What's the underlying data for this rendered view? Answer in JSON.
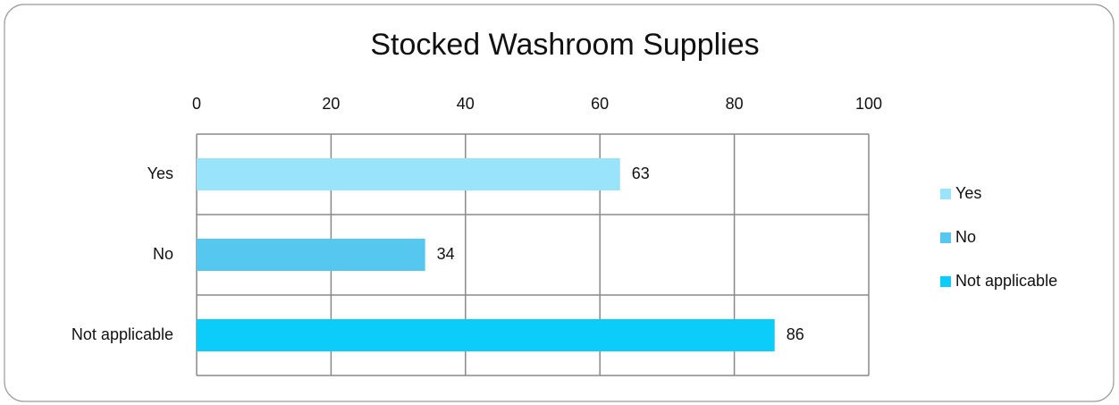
{
  "chart_data": {
    "type": "bar",
    "orientation": "horizontal",
    "title": "Stocked Washroom Supplies",
    "categories": [
      "Yes",
      "No",
      "Not applicable"
    ],
    "values": [
      63,
      34,
      86
    ],
    "colors": [
      "#99e4fb",
      "#56c8ef",
      "#0cccf9"
    ],
    "xlim": [
      0,
      100
    ],
    "xticks": [
      0,
      20,
      40,
      60,
      80,
      100
    ],
    "grid": true,
    "legend": "right"
  }
}
